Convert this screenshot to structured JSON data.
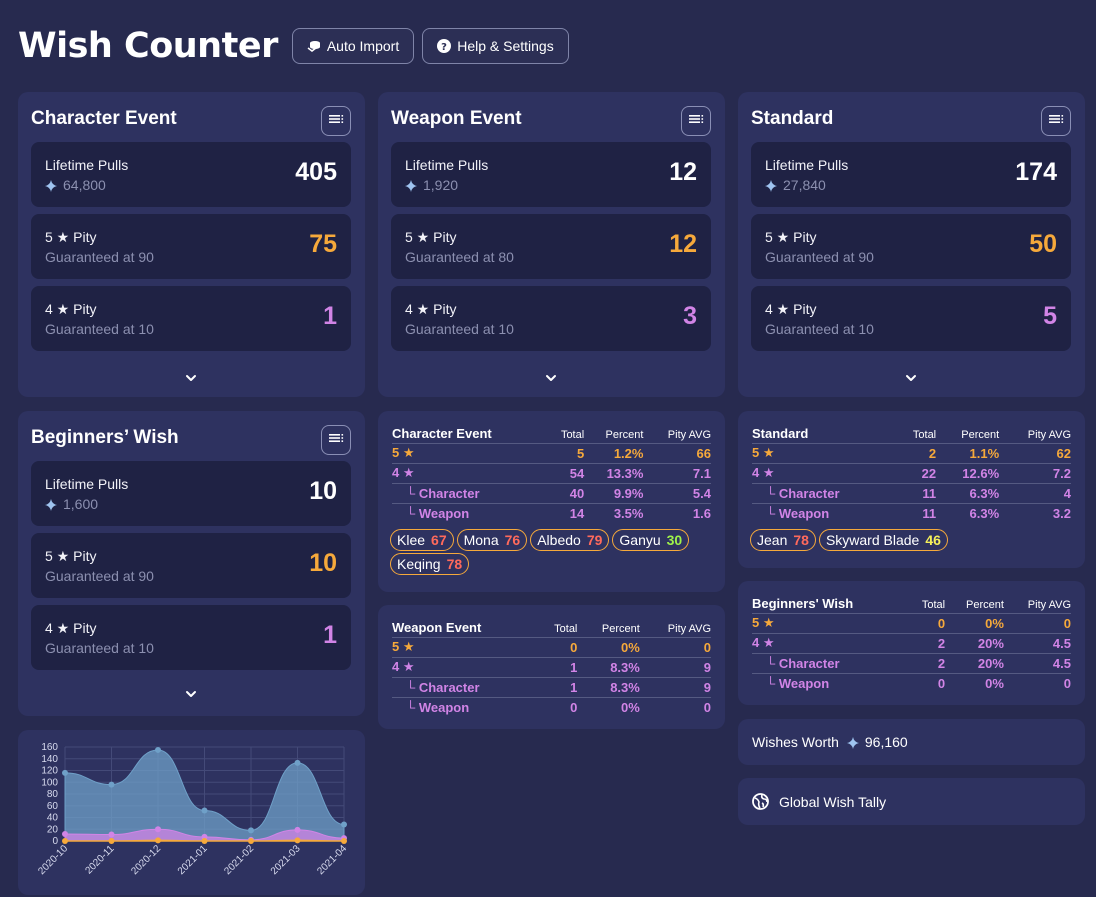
{
  "header": {
    "title": "Wish Counter",
    "auto_import_label": "Auto Import",
    "help_label": "Help & Settings"
  },
  "banners": {
    "character": {
      "title": "Character Event",
      "lifetime_label": "Lifetime Pulls",
      "lifetime_gems": "64,800",
      "lifetime_value": "405",
      "pity5_label": "5 ★ Pity",
      "pity5_guarantee": "Guaranteed at 90",
      "pity5_value": "75",
      "pity4_label": "4 ★ Pity",
      "pity4_guarantee": "Guaranteed at 10",
      "pity4_value": "1"
    },
    "weapon": {
      "title": "Weapon Event",
      "lifetime_label": "Lifetime Pulls",
      "lifetime_gems": "1,920",
      "lifetime_value": "12",
      "pity5_label": "5 ★ Pity",
      "pity5_guarantee": "Guaranteed at 80",
      "pity5_value": "12",
      "pity4_label": "4 ★ Pity",
      "pity4_guarantee": "Guaranteed at 10",
      "pity4_value": "3"
    },
    "standard": {
      "title": "Standard",
      "lifetime_label": "Lifetime Pulls",
      "lifetime_gems": "27,840",
      "lifetime_value": "174",
      "pity5_label": "5 ★ Pity",
      "pity5_guarantee": "Guaranteed at 90",
      "pity5_value": "50",
      "pity4_label": "4 ★ Pity",
      "pity4_guarantee": "Guaranteed at 10",
      "pity4_value": "5"
    },
    "beginners": {
      "title": "Beginners’ Wish",
      "lifetime_label": "Lifetime Pulls",
      "lifetime_gems": "1,600",
      "lifetime_value": "10",
      "pity5_label": "5 ★ Pity",
      "pity5_guarantee": "Guaranteed at 90",
      "pity5_value": "10",
      "pity4_label": "4 ★ Pity",
      "pity4_guarantee": "Guaranteed at 10",
      "pity4_value": "1"
    }
  },
  "tables": {
    "headers": {
      "total": "Total",
      "percent": "Percent",
      "pity": "Pity AVG"
    },
    "character": {
      "title": "Character Event",
      "rows": [
        {
          "name": "5 ★",
          "total": "5",
          "percent": "1.2%",
          "pity": "66"
        },
        {
          "name": "4 ★",
          "total": "54",
          "percent": "13.3%",
          "pity": "7.1"
        },
        {
          "name": "└ Character",
          "total": "40",
          "percent": "9.9%",
          "pity": "5.4"
        },
        {
          "name": "└ Weapon",
          "total": "14",
          "percent": "3.5%",
          "pity": "1.6"
        }
      ],
      "chips": [
        {
          "name": "Klee",
          "pity": "67"
        },
        {
          "name": "Mona",
          "pity": "76"
        },
        {
          "name": "Albedo",
          "pity": "79"
        },
        {
          "name": "Ganyu",
          "pity": "30"
        },
        {
          "name": "Keqing",
          "pity": "78"
        }
      ]
    },
    "standard": {
      "title": "Standard",
      "rows": [
        {
          "name": "5 ★",
          "total": "2",
          "percent": "1.1%",
          "pity": "62"
        },
        {
          "name": "4 ★",
          "total": "22",
          "percent": "12.6%",
          "pity": "7.2"
        },
        {
          "name": "└ Character",
          "total": "11",
          "percent": "6.3%",
          "pity": "4"
        },
        {
          "name": "└ Weapon",
          "total": "11",
          "percent": "6.3%",
          "pity": "3.2"
        }
      ],
      "chips": [
        {
          "name": "Jean",
          "pity": "78"
        },
        {
          "name": "Skyward Blade",
          "pity": "46"
        }
      ]
    },
    "weapon": {
      "title": "Weapon Event",
      "rows": [
        {
          "name": "5 ★",
          "total": "0",
          "percent": "0%",
          "pity": "0"
        },
        {
          "name": "4 ★",
          "total": "1",
          "percent": "8.3%",
          "pity": "9"
        },
        {
          "name": "└ Character",
          "total": "1",
          "percent": "8.3%",
          "pity": "9"
        },
        {
          "name": "└ Weapon",
          "total": "0",
          "percent": "0%",
          "pity": "0"
        }
      ]
    },
    "beginners": {
      "title": "Beginners' Wish",
      "rows": [
        {
          "name": "5 ★",
          "total": "0",
          "percent": "0%",
          "pity": "0"
        },
        {
          "name": "4 ★",
          "total": "2",
          "percent": "20%",
          "pity": "4.5"
        },
        {
          "name": "└ Character",
          "total": "2",
          "percent": "20%",
          "pity": "4.5"
        },
        {
          "name": "└ Weapon",
          "total": "0",
          "percent": "0%",
          "pity": "0"
        }
      ]
    }
  },
  "wishes_worth": {
    "label": "Wishes Worth",
    "value": "96,160"
  },
  "global_tally": {
    "label": "Global Wish Tally"
  },
  "colors": {
    "background": "#272a4f",
    "card": "#2e3260",
    "inner": "#1f2244",
    "five_star": "#f6a93b",
    "four_star": "#d184e6",
    "total_area": "#6fa0c8"
  },
  "chart_data": {
    "type": "area",
    "x": [
      "2020-10",
      "2020-11",
      "2020-12",
      "2021-01",
      "2021-02",
      "2021-03",
      "2021-04"
    ],
    "series": [
      {
        "values": [
          116,
          96,
          155,
          52,
          18,
          133,
          28
        ]
      },
      {
        "values": [
          12,
          11,
          20,
          7,
          2,
          19,
          5
        ]
      },
      {
        "values": [
          0,
          0,
          1,
          0,
          0,
          1,
          0
        ]
      }
    ],
    "ylim": [
      0,
      160
    ],
    "yticks": [
      0,
      20,
      40,
      60,
      80,
      100,
      120,
      140,
      160
    ],
    "grid": true
  }
}
